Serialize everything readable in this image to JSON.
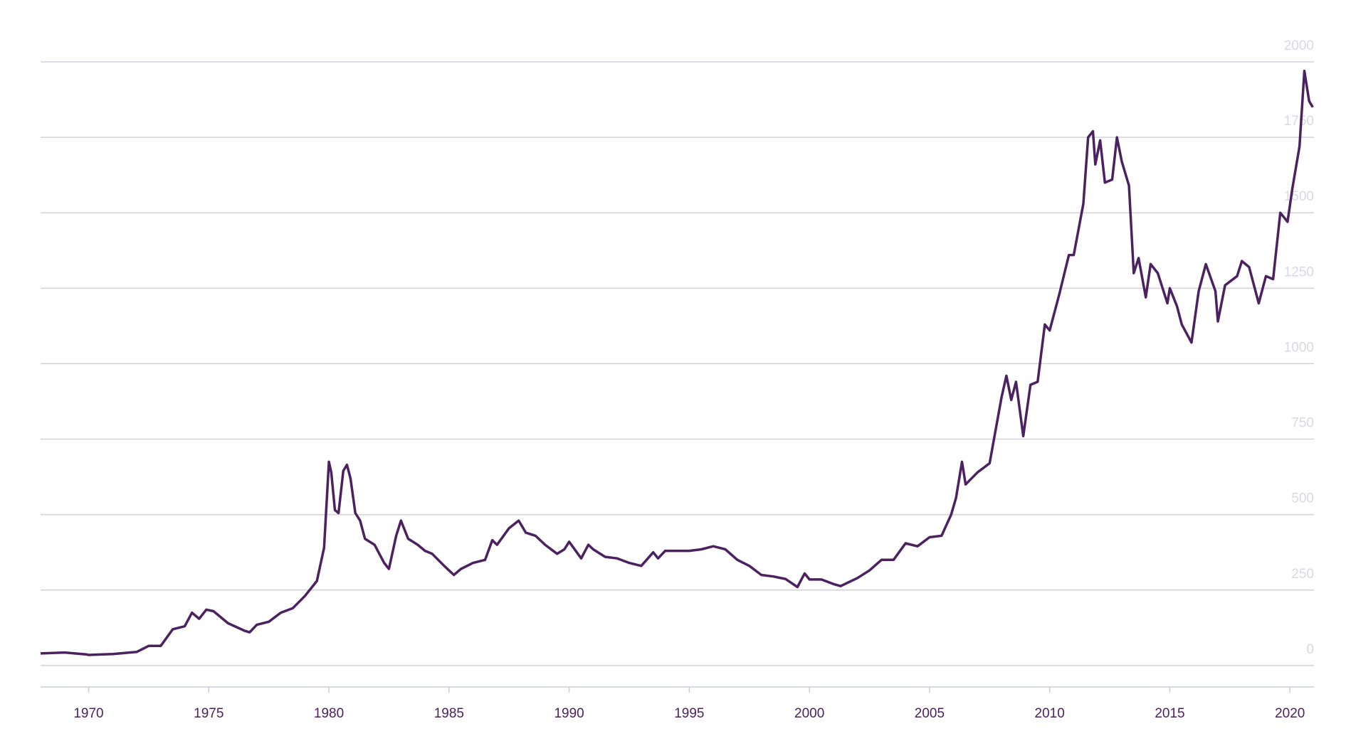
{
  "chart_data": {
    "type": "line",
    "x": [
      1968.0,
      1969.0,
      1969.9,
      1970.0,
      1971.0,
      1972.0,
      1972.5,
      1973.0,
      1973.5,
      1974.0,
      1974.3,
      1974.6,
      1974.9,
      1975.2,
      1975.8,
      1976.5,
      1976.7,
      1977.0,
      1977.5,
      1978.0,
      1978.5,
      1979.0,
      1979.5,
      1979.8,
      1980.0,
      1980.1,
      1980.25,
      1980.4,
      1980.6,
      1980.75,
      1980.9,
      1981.1,
      1981.3,
      1981.5,
      1981.9,
      1982.3,
      1982.5,
      1982.8,
      1983.0,
      1983.3,
      1983.7,
      1984.0,
      1984.3,
      1984.8,
      1985.2,
      1985.5,
      1986.0,
      1986.5,
      1986.8,
      1987.0,
      1987.5,
      1987.9,
      1988.2,
      1988.6,
      1989.0,
      1989.5,
      1989.8,
      1990.0,
      1990.5,
      1990.8,
      1991.0,
      1991.5,
      1992.0,
      1992.5,
      1993.0,
      1993.5,
      1993.7,
      1994.0,
      1995.0,
      1995.5,
      1996.0,
      1996.5,
      1997.0,
      1997.5,
      1998.0,
      1998.5,
      1999.0,
      1999.5,
      1999.8,
      2000.0,
      2000.5,
      2001.0,
      2001.3,
      2002.0,
      2002.5,
      2003.0,
      2003.5,
      2004.0,
      2004.5,
      2005.0,
      2005.5,
      2005.9,
      2006.1,
      2006.35,
      2006.5,
      2007.0,
      2007.5,
      2008.0,
      2008.2,
      2008.4,
      2008.6,
      2008.9,
      2009.2,
      2009.5,
      2009.8,
      2010.0,
      2010.4,
      2010.8,
      2011.0,
      2011.4,
      2011.6,
      2011.8,
      2011.9,
      2012.1,
      2012.3,
      2012.6,
      2012.8,
      2013.0,
      2013.3,
      2013.5,
      2013.7,
      2014.0,
      2014.2,
      2014.5,
      2014.9,
      2015.0,
      2015.3,
      2015.5,
      2015.9,
      2016.2,
      2016.5,
      2016.9,
      2017.0,
      2017.3,
      2017.8,
      2018.0,
      2018.3,
      2018.7,
      2019.0,
      2019.3,
      2019.6,
      2019.9,
      2020.1,
      2020.4,
      2020.6,
      2020.8,
      2020.95
    ],
    "series": [
      {
        "color": "#4b2160",
        "values": [
          40,
          43,
          37,
          35,
          38,
          45,
          65,
          65,
          120,
          130,
          175,
          155,
          185,
          180,
          140,
          115,
          110,
          135,
          145,
          175,
          190,
          230,
          280,
          390,
          675,
          640,
          515,
          505,
          645,
          665,
          620,
          505,
          480,
          420,
          400,
          340,
          320,
          430,
          480,
          420,
          400,
          380,
          370,
          330,
          300,
          320,
          340,
          350,
          415,
          400,
          455,
          480,
          440,
          430,
          400,
          370,
          385,
          410,
          355,
          400,
          385,
          360,
          355,
          340,
          330,
          375,
          355,
          380,
          380,
          385,
          395,
          385,
          350,
          330,
          300,
          295,
          287,
          260,
          305,
          285,
          285,
          270,
          263,
          290,
          315,
          350,
          350,
          405,
          395,
          425,
          430,
          500,
          555,
          675,
          600,
          640,
          670,
          890,
          960,
          880,
          940,
          760,
          930,
          940,
          1130,
          1110,
          1230,
          1360,
          1360,
          1530,
          1750,
          1770,
          1660,
          1740,
          1600,
          1610,
          1750,
          1670,
          1590,
          1300,
          1350,
          1220,
          1330,
          1300,
          1200,
          1250,
          1190,
          1130,
          1070,
          1240,
          1330,
          1240,
          1140,
          1260,
          1290,
          1340,
          1320,
          1200,
          1290,
          1280,
          1500,
          1470,
          1580,
          1720,
          1970,
          1870,
          1850
        ]
      }
    ],
    "xlim": [
      1968,
      2021
    ],
    "xticks": [
      1970,
      1975,
      1980,
      1985,
      1990,
      1995,
      2000,
      2005,
      2010,
      2015,
      2020
    ],
    "ylim": [
      -71,
      2000
    ],
    "yticks": [
      0,
      250,
      500,
      750,
      1000,
      1250,
      1500,
      1750,
      2000
    ],
    "grid": true
  }
}
